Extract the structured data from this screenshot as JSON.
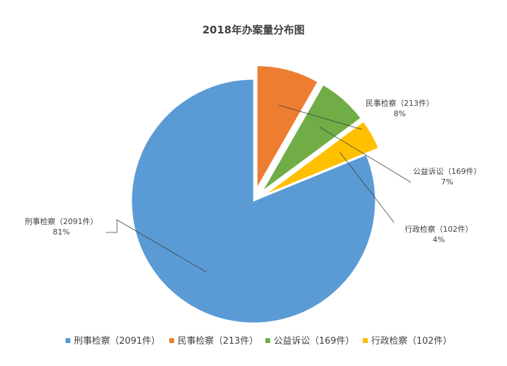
{
  "chart_data": {
    "type": "pie",
    "title": "2018年办案量分布图",
    "exploded": true,
    "legend_position": "bottom",
    "slices": [
      {
        "name": "刑事检察（2091件）",
        "value": 2091,
        "percent_label": "81%",
        "color": "#5B9BD5"
      },
      {
        "name": "民事检察（213件）",
        "value": 213,
        "percent_label": "8%",
        "color": "#ED7D31"
      },
      {
        "name": "公益诉讼（169件）",
        "value": 169,
        "percent_label": "7%",
        "color": "#70AD47"
      },
      {
        "name": "行政检察（102件）",
        "value": 102,
        "percent_label": "4%",
        "color": "#FFC000"
      }
    ]
  }
}
